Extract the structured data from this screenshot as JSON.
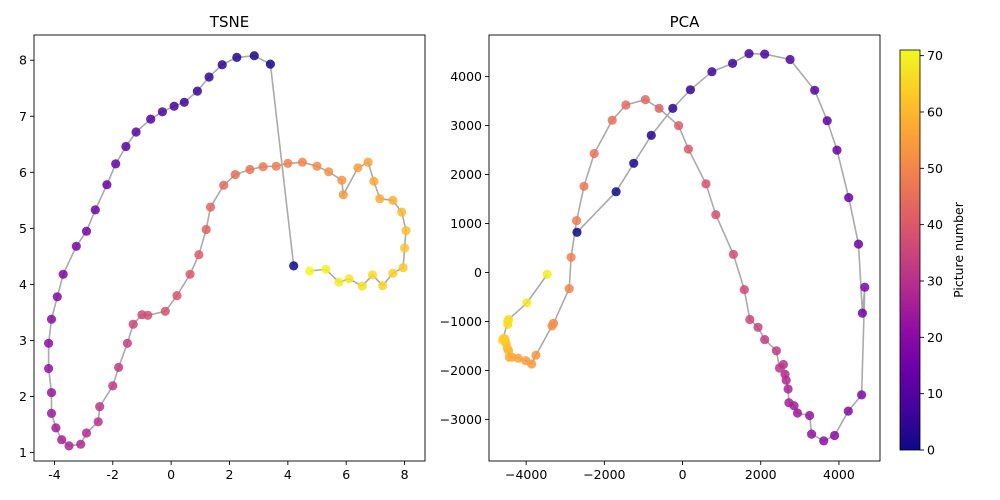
{
  "chart_data": [
    {
      "type": "scatter",
      "title": "TSNE",
      "xlabel": "",
      "ylabel": "",
      "xlim": [
        -4.7,
        8.7
      ],
      "ylim": [
        0.85,
        8.45
      ],
      "xticks": [
        -4,
        -2,
        0,
        2,
        4,
        6,
        8
      ],
      "yticks": [
        1,
        2,
        3,
        4,
        5,
        6,
        7,
        8
      ],
      "connected_line": true,
      "line_color": "#aaaaaa",
      "grid": false,
      "points": [
        [
          4.2,
          4.33
        ],
        [
          3.4,
          7.93
        ],
        [
          2.85,
          8.08
        ],
        [
          2.25,
          8.05
        ],
        [
          1.75,
          7.92
        ],
        [
          1.3,
          7.7
        ],
        [
          0.9,
          7.45
        ],
        [
          0.45,
          7.25
        ],
        [
          0.1,
          7.18
        ],
        [
          -0.3,
          7.08
        ],
        [
          -0.7,
          6.95
        ],
        [
          -1.2,
          6.72
        ],
        [
          -1.55,
          6.46
        ],
        [
          -1.9,
          6.15
        ],
        [
          -2.2,
          5.78
        ],
        [
          -2.6,
          5.33
        ],
        [
          -2.9,
          4.95
        ],
        [
          -3.25,
          4.68
        ],
        [
          -3.7,
          4.18
        ],
        [
          -3.9,
          3.78
        ],
        [
          -4.1,
          3.38
        ],
        [
          -4.2,
          2.95
        ],
        [
          -4.2,
          2.5
        ],
        [
          -4.1,
          2.07
        ],
        [
          -4.1,
          1.7
        ],
        [
          -3.95,
          1.44
        ],
        [
          -3.75,
          1.23
        ],
        [
          -3.5,
          1.12
        ],
        [
          -3.1,
          1.15
        ],
        [
          -2.9,
          1.35
        ],
        [
          -2.5,
          1.55
        ],
        [
          -2.45,
          1.82
        ],
        [
          -2.0,
          2.19
        ],
        [
          -1.8,
          2.52
        ],
        [
          -1.5,
          2.95
        ],
        [
          -1.3,
          3.29
        ],
        [
          -1.0,
          3.46
        ],
        [
          -0.8,
          3.45
        ],
        [
          -0.2,
          3.52
        ],
        [
          0.2,
          3.8
        ],
        [
          0.65,
          4.18
        ],
        [
          0.95,
          4.53
        ],
        [
          1.2,
          4.98
        ],
        [
          1.35,
          5.38
        ],
        [
          1.8,
          5.77
        ],
        [
          2.2,
          5.96
        ],
        [
          2.7,
          6.05
        ],
        [
          3.15,
          6.1
        ],
        [
          3.6,
          6.11
        ],
        [
          4.0,
          6.16
        ],
        [
          4.5,
          6.18
        ],
        [
          5.0,
          6.11
        ],
        [
          5.4,
          6.01
        ],
        [
          5.85,
          5.86
        ],
        [
          5.9,
          5.6
        ],
        [
          6.4,
          6.08
        ],
        [
          6.75,
          6.18
        ],
        [
          6.95,
          5.84
        ],
        [
          7.15,
          5.53
        ],
        [
          7.6,
          5.5
        ],
        [
          7.9,
          5.29
        ],
        [
          8.05,
          4.96
        ],
        [
          8.0,
          4.65
        ],
        [
          7.95,
          4.3
        ],
        [
          7.6,
          4.2
        ],
        [
          7.25,
          3.98
        ],
        [
          6.9,
          4.17
        ],
        [
          6.55,
          3.97
        ],
        [
          6.1,
          4.1
        ],
        [
          5.75,
          4.04
        ],
        [
          5.3,
          4.27
        ],
        [
          4.75,
          4.24
        ]
      ]
    },
    {
      "type": "scatter",
      "title": "PCA",
      "xlabel": "",
      "ylabel": "",
      "xlim": [
        -4950,
        5050
      ],
      "ylim": [
        -3850,
        4850
      ],
      "xticks": [
        -4000,
        -2000,
        0,
        2000,
        4000
      ],
      "xtick_labels": [
        "−4000",
        "−2000",
        "0",
        "2000",
        "4000"
      ],
      "yticks": [
        -3000,
        -2000,
        -1000,
        0,
        1000,
        2000,
        3000,
        4000
      ],
      "ytick_labels": [
        "−3000",
        "−2000",
        "−1000",
        "0",
        "1000",
        "2000",
        "3000",
        "4000"
      ],
      "connected_line": true,
      "line_color": "#aaaaaa",
      "grid": false,
      "points": [
        [
          -2700,
          820
        ],
        [
          -1700,
          1650
        ],
        [
          -1250,
          2230
        ],
        [
          -800,
          2800
        ],
        [
          -250,
          3350
        ],
        [
          200,
          3730
        ],
        [
          750,
          4100
        ],
        [
          1280,
          4270
        ],
        [
          1700,
          4470
        ],
        [
          2100,
          4460
        ],
        [
          2750,
          4350
        ],
        [
          3380,
          3720
        ],
        [
          3700,
          3100
        ],
        [
          3950,
          2500
        ],
        [
          4250,
          1530
        ],
        [
          4500,
          580
        ],
        [
          4600,
          -830
        ],
        [
          4660,
          -300
        ],
        [
          4580,
          -2500
        ],
        [
          4240,
          -2830
        ],
        [
          3890,
          -3330
        ],
        [
          3610,
          -3440
        ],
        [
          3300,
          -3300
        ],
        [
          3250,
          -2920
        ],
        [
          2940,
          -2870
        ],
        [
          2850,
          -2720
        ],
        [
          2720,
          -2660
        ],
        [
          2700,
          -2380
        ],
        [
          2650,
          -2200
        ],
        [
          2620,
          -2080
        ],
        [
          2580,
          -1880
        ],
        [
          2480,
          -1950
        ],
        [
          2400,
          -1600
        ],
        [
          2100,
          -1370
        ],
        [
          1930,
          -1120
        ],
        [
          1720,
          -960
        ],
        [
          1580,
          -350
        ],
        [
          1300,
          370
        ],
        [
          850,
          1180
        ],
        [
          600,
          1810
        ],
        [
          150,
          2520
        ],
        [
          -100,
          3000
        ],
        [
          -600,
          3350
        ],
        [
          -950,
          3530
        ],
        [
          -1450,
          3420
        ],
        [
          -1800,
          3110
        ],
        [
          -2260,
          2430
        ],
        [
          -2520,
          1760
        ],
        [
          -2710,
          1060
        ],
        [
          -2850,
          310
        ],
        [
          -2900,
          -330
        ],
        [
          -3300,
          -1040
        ],
        [
          -3340,
          -1090
        ],
        [
          -3750,
          -1690
        ],
        [
          -3860,
          -1870
        ],
        [
          -4010,
          -1800
        ],
        [
          -4200,
          -1750
        ],
        [
          -4360,
          -1730
        ],
        [
          -4430,
          -1730
        ],
        [
          -4450,
          -1600
        ],
        [
          -4480,
          -1550
        ],
        [
          -4510,
          -1450
        ],
        [
          -4540,
          -1360
        ],
        [
          -4580,
          -1350
        ],
        [
          -4600,
          -1380
        ],
        [
          -4470,
          -1000
        ],
        [
          -4470,
          -1060
        ],
        [
          -4450,
          -960
        ],
        [
          -3980,
          -620
        ],
        [
          -3460,
          -40
        ]
      ]
    }
  ],
  "colorbar": {
    "label": "Picture number",
    "range": [
      0,
      71
    ],
    "ticks": [
      0,
      10,
      20,
      30,
      40,
      50,
      60,
      70
    ],
    "colormap": "plasma",
    "colormap_stops": [
      "#0d0887",
      "#41049d",
      "#6a00a8",
      "#8f0da4",
      "#b12a90",
      "#cc4778",
      "#e16462",
      "#f2844b",
      "#fca636",
      "#fcce25",
      "#f0f921"
    ]
  }
}
